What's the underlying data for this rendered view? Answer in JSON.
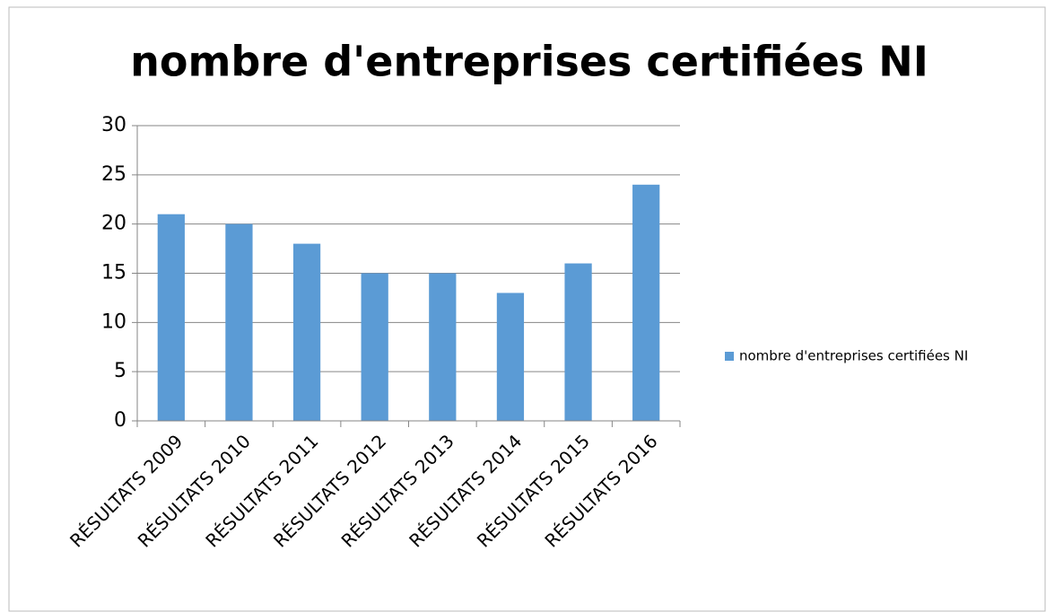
{
  "chart_data": {
    "type": "bar",
    "title": "nombre d'entreprises certifiées NI",
    "categories": [
      "RÉSULTATS 2009",
      "RÉSULTATS 2010",
      "RÉSULTATS 2011",
      "RÉSULTATS 2012",
      "RÉSULTATS 2013",
      "RÉSULTATS 2014",
      "RÉSULTATS 2015",
      "RÉSULTATS 2016"
    ],
    "series": [
      {
        "name": "nombre d'entreprises certifiées NI",
        "color": "#5b9bd5",
        "values": [
          21,
          20,
          18,
          15,
          15,
          13,
          16,
          24
        ]
      }
    ],
    "ylim": [
      0,
      30
    ],
    "yticks": [
      0,
      5,
      10,
      15,
      20,
      25,
      30
    ],
    "grid": true,
    "legend": "right"
  }
}
